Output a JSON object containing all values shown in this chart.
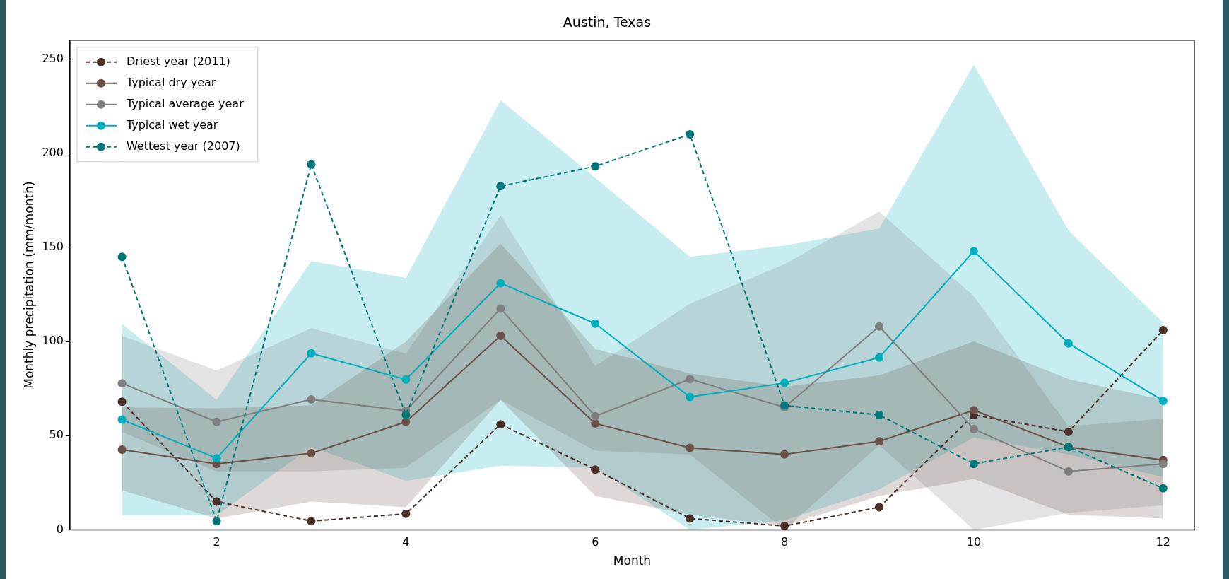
{
  "chart_data": {
    "type": "line",
    "title": "Austin, Texas",
    "xlabel": "Month",
    "ylabel": "Monthly precipitation (mm/month)",
    "x": [
      1,
      2,
      3,
      4,
      5,
      6,
      7,
      8,
      9,
      10,
      11,
      12
    ],
    "series": [
      {
        "name": "Driest year (2011)",
        "color": "#4a2f27",
        "line_style": "dashed",
        "values": [
          68,
          15,
          4.6,
          8.5,
          56,
          32,
          6,
          2,
          12,
          61,
          52,
          106
        ]
      },
      {
        "name": "Typical dry year",
        "color": "#6b5047",
        "line_style": "solid",
        "values": [
          42.6,
          35,
          40.7,
          57.3,
          103,
          56.5,
          43.5,
          40,
          47,
          63.5,
          44,
          37
        ],
        "lower": [
          21,
          6,
          15,
          12,
          69,
          18,
          8,
          2,
          18,
          27,
          8,
          6
        ],
        "upper": [
          65,
          64.5,
          66,
          100,
          152,
          96,
          83,
          76,
          82,
          100,
          80,
          69
        ]
      },
      {
        "name": "Typical average year",
        "color": "#7f7f7f",
        "line_style": "solid",
        "values": [
          77.8,
          57.3,
          69.2,
          63.2,
          117.5,
          60.3,
          80,
          65,
          108,
          53.5,
          31,
          35
        ],
        "lower": [
          52,
          31,
          31,
          33,
          69,
          42,
          40,
          0,
          45,
          0,
          9,
          13
        ],
        "upper": [
          103,
          84.6,
          107,
          93.5,
          167,
          87,
          120,
          141,
          169,
          124,
          55,
          59
        ]
      },
      {
        "name": "Typical wet year",
        "color": "#00aebd",
        "line_style": "solid",
        "values": [
          58.5,
          38,
          93.7,
          79.8,
          131,
          109.5,
          70.5,
          78,
          91.5,
          148,
          99,
          68.5
        ],
        "lower": [
          7.7,
          7.7,
          44,
          26,
          34,
          33,
          0,
          5,
          21.5,
          49,
          40,
          28
        ],
        "upper": [
          109.4,
          69,
          142.7,
          133.8,
          228,
          187,
          145,
          151,
          160,
          247,
          159,
          110
        ]
      },
      {
        "name": "Wettest year (2007)",
        "color": "#00777a",
        "line_style": "dashed",
        "values": [
          145,
          4.6,
          194,
          61,
          182.5,
          193,
          210,
          66,
          61,
          35,
          44,
          22
        ]
      }
    ],
    "xlim": [
      0.45,
      12.33
    ],
    "ylim": [
      0,
      260
    ],
    "xticks": [
      2,
      4,
      6,
      8,
      10,
      12
    ],
    "yticks": [
      0,
      50,
      100,
      150,
      200,
      250
    ],
    "grid": false,
    "legend": "top left",
    "marker": "circle"
  }
}
